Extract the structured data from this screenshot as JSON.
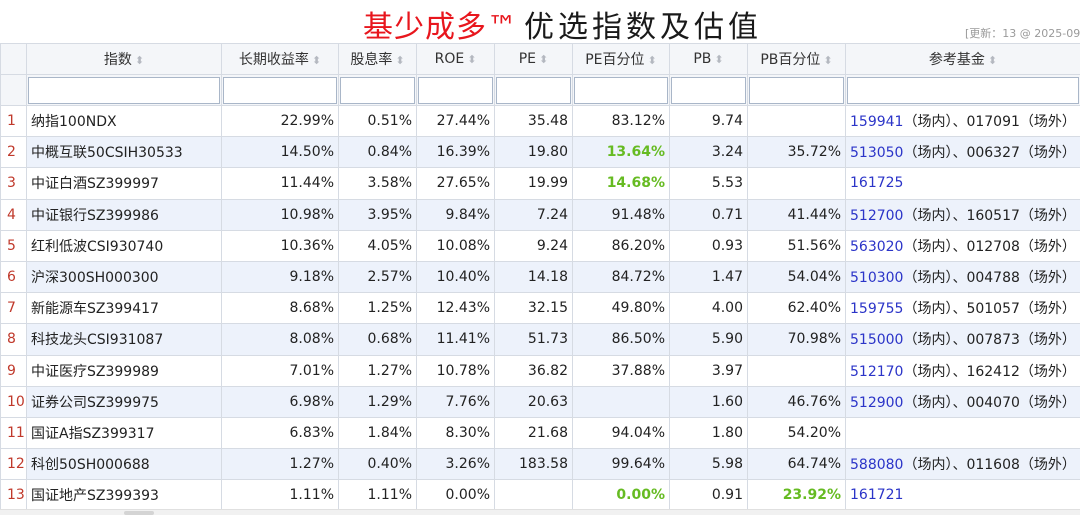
{
  "title": {
    "brand": "基少成多™",
    "rest": "优选指数及估值"
  },
  "update_note": "[更新：13 @ 2025-09",
  "columns": [
    {
      "key": "index",
      "label": "指数"
    },
    {
      "key": "long_return",
      "label": "长期收益率"
    },
    {
      "key": "dividend",
      "label": "股息率"
    },
    {
      "key": "roe",
      "label": "ROE"
    },
    {
      "key": "pe",
      "label": "PE"
    },
    {
      "key": "pe_pct",
      "label": "PE百分位"
    },
    {
      "key": "pb",
      "label": "PB"
    },
    {
      "key": "pb_pct",
      "label": "PB百分位"
    },
    {
      "key": "funds",
      "label": "参考基金"
    }
  ],
  "rows": [
    {
      "n": "1",
      "index": "纳指100NDX",
      "long_return": "22.99%",
      "dividend": "0.51%",
      "roe": "27.44%",
      "pe": "35.48",
      "pe_pct": "83.12%",
      "pb": "9.74",
      "pb_pct": "",
      "funds": [
        {
          "code": "159941",
          "tag": "（场内）、017091（场外）"
        }
      ]
    },
    {
      "n": "2",
      "index": "中概互联50CSIH30533",
      "long_return": "14.50%",
      "dividend": "0.84%",
      "roe": "16.39%",
      "pe": "19.80",
      "pe_pct": "13.64%",
      "pe_pct_hl": true,
      "pb": "3.24",
      "pb_pct": "35.72%",
      "funds": [
        {
          "code": "513050",
          "tag": "（场内）、006327（场外）"
        }
      ]
    },
    {
      "n": "3",
      "index": "中证白酒SZ399997",
      "long_return": "11.44%",
      "dividend": "3.58%",
      "roe": "27.65%",
      "pe": "19.99",
      "pe_pct": "14.68%",
      "pe_pct_hl": true,
      "pb": "5.53",
      "pb_pct": "",
      "funds": [
        {
          "code": "161725",
          "tag": ""
        }
      ]
    },
    {
      "n": "4",
      "index": "中证银行SZ399986",
      "long_return": "10.98%",
      "dividend": "3.95%",
      "roe": "9.84%",
      "pe": "7.24",
      "pe_pct": "91.48%",
      "pb": "0.71",
      "pb_pct": "41.44%",
      "funds": [
        {
          "code": "512700",
          "tag": "（场内）、160517（场外）"
        }
      ]
    },
    {
      "n": "5",
      "index": "红利低波CSI930740",
      "long_return": "10.36%",
      "dividend": "4.05%",
      "roe": "10.08%",
      "pe": "9.24",
      "pe_pct": "86.20%",
      "pb": "0.93",
      "pb_pct": "51.56%",
      "funds": [
        {
          "code": "563020",
          "tag": "（场内）、012708（场外）"
        }
      ]
    },
    {
      "n": "6",
      "index": "沪深300SH000300",
      "long_return": "9.18%",
      "dividend": "2.57%",
      "roe": "10.40%",
      "pe": "14.18",
      "pe_pct": "84.72%",
      "pb": "1.47",
      "pb_pct": "54.04%",
      "funds": [
        {
          "code": "510300",
          "tag": "（场内）、004788（场外）"
        }
      ]
    },
    {
      "n": "7",
      "index": "新能源车SZ399417",
      "long_return": "8.68%",
      "dividend": "1.25%",
      "roe": "12.43%",
      "pe": "32.15",
      "pe_pct": "49.80%",
      "pb": "4.00",
      "pb_pct": "62.40%",
      "funds": [
        {
          "code": "159755",
          "tag": "（场内）、501057（场外）"
        }
      ]
    },
    {
      "n": "8",
      "index": "科技龙头CSI931087",
      "long_return": "8.08%",
      "dividend": "0.68%",
      "roe": "11.41%",
      "pe": "51.73",
      "pe_pct": "86.50%",
      "pb": "5.90",
      "pb_pct": "70.98%",
      "funds": [
        {
          "code": "515000",
          "tag": "（场内）、007873（场外）"
        }
      ]
    },
    {
      "n": "9",
      "index": "中证医疗SZ399989",
      "long_return": "7.01%",
      "dividend": "1.27%",
      "roe": "10.78%",
      "pe": "36.82",
      "pe_pct": "37.88%",
      "pb": "3.97",
      "pb_pct": "",
      "funds": [
        {
          "code": "512170",
          "tag": "（场内）、162412（场外）"
        }
      ]
    },
    {
      "n": "10",
      "index": "证券公司SZ399975",
      "long_return": "6.98%",
      "dividend": "1.29%",
      "roe": "7.76%",
      "pe": "20.63",
      "pe_pct": "",
      "pb": "1.60",
      "pb_pct": "46.76%",
      "funds": [
        {
          "code": "512900",
          "tag": "（场内）、004070（场外）"
        }
      ]
    },
    {
      "n": "11",
      "index": "国证A指SZ399317",
      "long_return": "6.83%",
      "dividend": "1.84%",
      "roe": "8.30%",
      "pe": "21.68",
      "pe_pct": "94.04%",
      "pb": "1.80",
      "pb_pct": "54.20%",
      "funds": []
    },
    {
      "n": "12",
      "index": "科创50SH000688",
      "long_return": "1.27%",
      "dividend": "0.40%",
      "roe": "3.26%",
      "pe": "183.58",
      "pe_pct": "99.64%",
      "pb": "5.98",
      "pb_pct": "64.74%",
      "funds": [
        {
          "code": "588080",
          "tag": "（场内）、011608（场外）"
        }
      ]
    },
    {
      "n": "13",
      "index": "国证地产SZ399393",
      "long_return": "1.11%",
      "dividend": "1.11%",
      "roe": "0.00%",
      "pe": "",
      "pe_pct": "0.00%",
      "pe_pct_hl": true,
      "pb": "0.91",
      "pb_pct": "23.92%",
      "pb_pct_hl": true,
      "funds": [
        {
          "code": "161721",
          "tag": ""
        }
      ]
    }
  ],
  "colors": {
    "brand_red": "#e8161d",
    "row_number_red": "#c0392b",
    "highlight_green": "#66bb22",
    "fund_link_blue": "#2b34c8",
    "alt_row_blue": "#edf2fb"
  },
  "icons": {
    "sort": "sort-arrows-icon"
  }
}
